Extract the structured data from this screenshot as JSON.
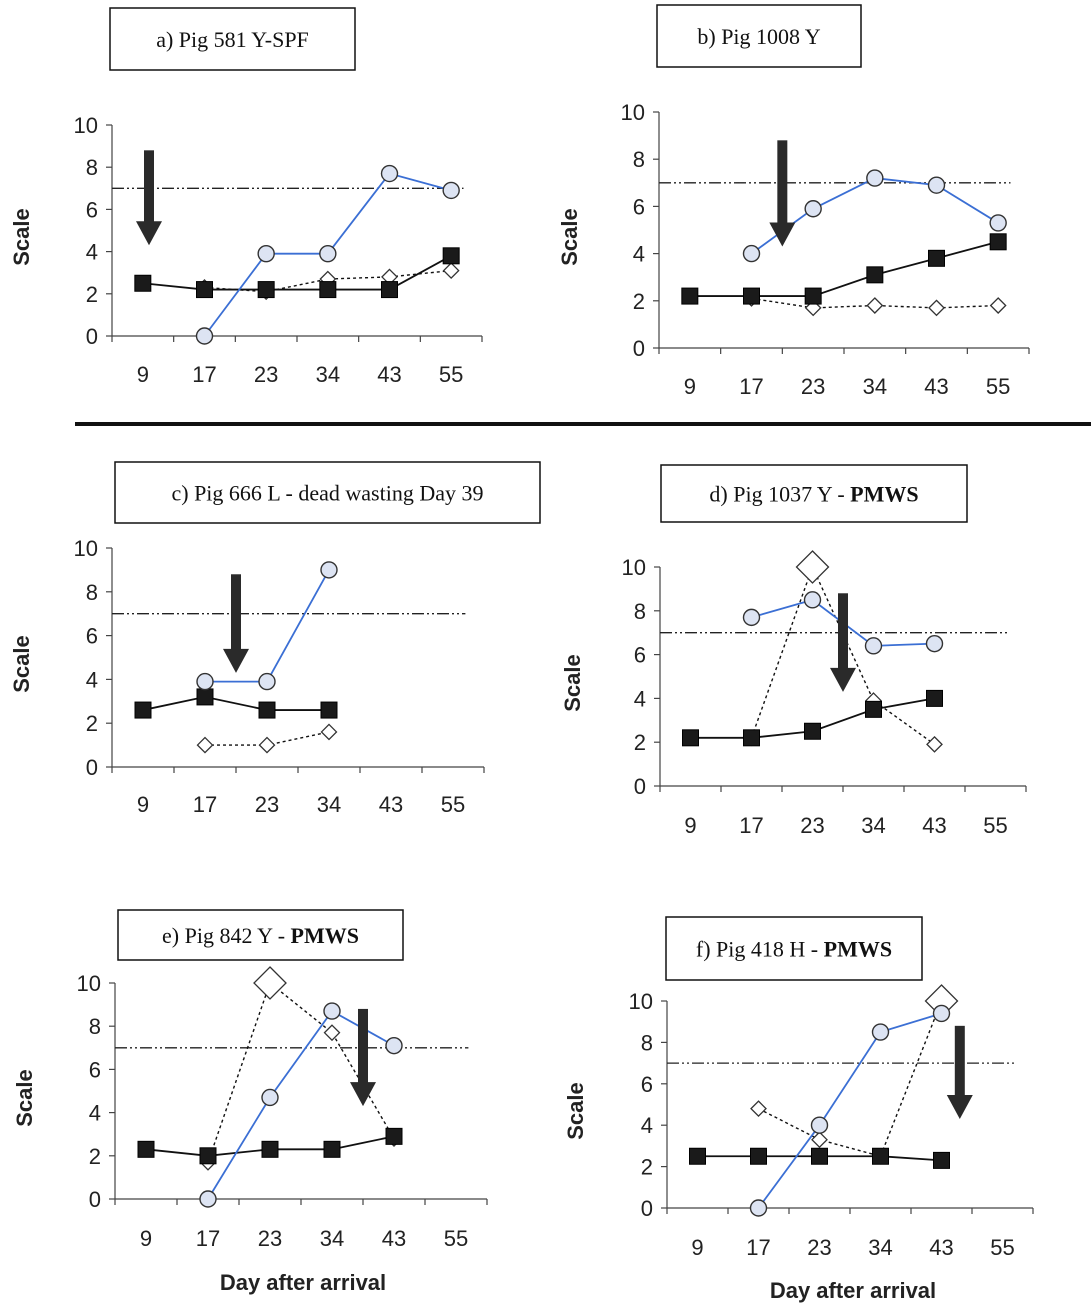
{
  "chart_data": [
    {
      "type": "line",
      "title": "a) Pig 581 Y-SPF",
      "title_bold": "",
      "categories": [
        "9",
        "17",
        "23",
        "34",
        "43",
        "55"
      ],
      "ylabel": "Scale",
      "xlabel": "",
      "ylim": [
        0,
        10
      ],
      "yticks": [
        "0",
        "2",
        "4",
        "6",
        "8",
        "10"
      ],
      "threshold": 7,
      "arrow_at": 0.1,
      "series": [
        {
          "marker": "circle",
          "color": "#3b6fd4",
          "values": [
            null,
            0,
            3.9,
            3.9,
            7.7,
            6.9
          ]
        },
        {
          "marker": "square",
          "color": "#111111",
          "values": [
            2.5,
            2.2,
            2.2,
            2.2,
            2.2,
            3.8
          ]
        },
        {
          "marker": "diamond",
          "color": "#111111",
          "values": [
            null,
            2.3,
            2.1,
            2.7,
            2.8,
            3.1
          ]
        }
      ]
    },
    {
      "type": "line",
      "title": "b) Pig 1008 Y",
      "title_bold": "",
      "categories": [
        "9",
        "17",
        "23",
        "34",
        "43",
        "55"
      ],
      "ylabel": "Scale",
      "xlabel": "",
      "ylim": [
        0,
        10
      ],
      "yticks": [
        "0",
        "2",
        "4",
        "6",
        "8",
        "10"
      ],
      "threshold": 7,
      "arrow_at": 1.5,
      "series": [
        {
          "marker": "circle",
          "color": "#3b6fd4",
          "values": [
            null,
            4.0,
            5.9,
            7.2,
            6.9,
            5.3
          ]
        },
        {
          "marker": "square",
          "color": "#111111",
          "values": [
            2.2,
            2.2,
            2.2,
            3.1,
            3.8,
            4.5
          ]
        },
        {
          "marker": "diamond",
          "color": "#111111",
          "values": [
            null,
            2.1,
            1.7,
            1.8,
            1.7,
            1.8
          ]
        }
      ]
    },
    {
      "type": "line",
      "title": "c) Pig 666 L - dead wasting Day 39",
      "title_bold": "",
      "categories": [
        "9",
        "17",
        "23",
        "34",
        "43",
        "55"
      ],
      "ylabel": "Scale",
      "xlabel": "",
      "ylim": [
        0,
        10
      ],
      "yticks": [
        "0",
        "2",
        "4",
        "6",
        "8",
        "10"
      ],
      "threshold": 7,
      "arrow_at": 1.5,
      "series": [
        {
          "marker": "circle",
          "color": "#3b6fd4",
          "values": [
            null,
            3.9,
            3.9,
            9.0,
            null,
            null
          ]
        },
        {
          "marker": "square",
          "color": "#111111",
          "values": [
            2.6,
            3.2,
            2.6,
            2.6,
            null,
            null
          ]
        },
        {
          "marker": "diamond",
          "color": "#111111",
          "values": [
            null,
            1.0,
            1.0,
            1.6,
            null,
            null
          ]
        }
      ]
    },
    {
      "type": "line",
      "title": "d) Pig 1037 Y - ",
      "title_bold": "PMWS",
      "categories": [
        "9",
        "17",
        "23",
        "34",
        "43",
        "55"
      ],
      "ylabel": "Scale",
      "xlabel": "",
      "ylim": [
        0,
        10
      ],
      "yticks": [
        "0",
        "2",
        "4",
        "6",
        "8",
        "10"
      ],
      "threshold": 7,
      "arrow_at": 2.5,
      "series": [
        {
          "marker": "circle",
          "color": "#3b6fd4",
          "values": [
            null,
            7.7,
            8.5,
            6.4,
            6.5,
            null
          ]
        },
        {
          "marker": "square",
          "color": "#111111",
          "values": [
            2.2,
            2.2,
            2.5,
            3.5,
            4.0,
            null
          ]
        },
        {
          "marker": "diamond",
          "color": "#111111",
          "values": [
            null,
            2.2,
            10.0,
            3.9,
            1.9,
            null
          ],
          "big_index": 2
        }
      ]
    },
    {
      "type": "line",
      "title": "e) Pig 842 Y - ",
      "title_bold": "PMWS",
      "categories": [
        "9",
        "17",
        "23",
        "34",
        "43",
        "55"
      ],
      "ylabel": "Scale",
      "xlabel": "Day after arrival",
      "ylim": [
        0,
        10
      ],
      "yticks": [
        "0",
        "2",
        "4",
        "6",
        "8",
        "10"
      ],
      "threshold": 7,
      "arrow_at": 3.5,
      "series": [
        {
          "marker": "circle",
          "color": "#3b6fd4",
          "values": [
            null,
            0,
            4.7,
            8.7,
            7.1,
            null
          ]
        },
        {
          "marker": "square",
          "color": "#111111",
          "values": [
            2.3,
            2.0,
            2.3,
            2.3,
            2.9,
            null
          ]
        },
        {
          "marker": "diamond",
          "color": "#111111",
          "values": [
            null,
            1.7,
            10.0,
            7.7,
            2.8,
            null
          ],
          "big_index": 2
        }
      ]
    },
    {
      "type": "line",
      "title": "f) Pig 418 H - ",
      "title_bold": "PMWS",
      "categories": [
        "9",
        "17",
        "23",
        "34",
        "43",
        "55"
      ],
      "ylabel": "Scale",
      "xlabel": "Day after arrival",
      "ylim": [
        0,
        10
      ],
      "yticks": [
        "0",
        "2",
        "4",
        "6",
        "8",
        "10"
      ],
      "threshold": 7,
      "arrow_at": 4.3,
      "series": [
        {
          "marker": "circle",
          "color": "#3b6fd4",
          "values": [
            null,
            0,
            4.0,
            8.5,
            9.4,
            null
          ]
        },
        {
          "marker": "square",
          "color": "#111111",
          "values": [
            2.5,
            2.5,
            2.5,
            2.5,
            2.3,
            null
          ]
        },
        {
          "marker": "diamond",
          "color": "#111111",
          "values": [
            null,
            4.8,
            3.3,
            2.5,
            10.0,
            null
          ],
          "big_index": 4
        }
      ]
    }
  ]
}
